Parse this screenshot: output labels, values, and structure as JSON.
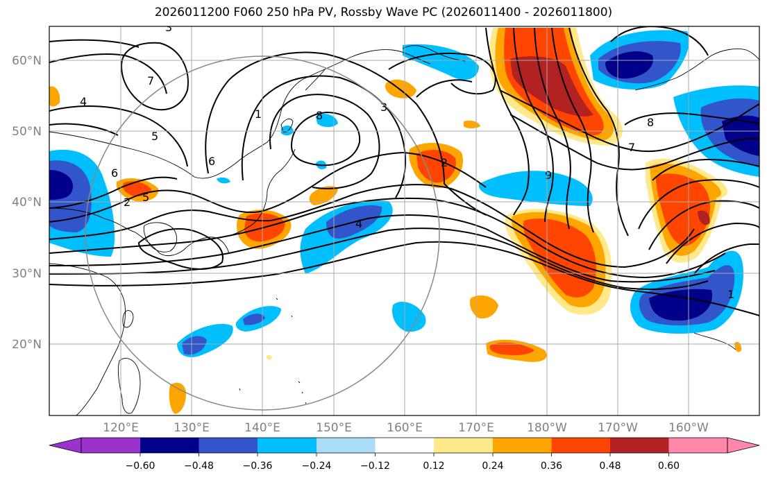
{
  "title": "2026011200 F060 250 hPa PV, Rossby Wave PC (2026011400 - 2026011800)",
  "map": {
    "lat_ticks": [
      "60°N",
      "50°N",
      "40°N",
      "30°N",
      "20°N"
    ],
    "lon_ticks": [
      "120°E",
      "130°E",
      "140°E",
      "150°E",
      "160°E",
      "170°E",
      "180°W",
      "170°W",
      "160°W"
    ],
    "contour_labels": [
      "3",
      "4",
      "5",
      "6",
      "7",
      "8",
      "1",
      "2",
      "4",
      "5",
      "6",
      "7",
      "8",
      "1",
      "2",
      "3",
      "9"
    ],
    "circle_color": "#888888",
    "grid_color": "#aaaaaa"
  },
  "colorbar": {
    "tick_labels": [
      "−0.60",
      "−0.48",
      "−0.36",
      "−0.24",
      "−0.12",
      "0.12",
      "0.24",
      "0.36",
      "0.48",
      "0.60"
    ],
    "colors": [
      "#9933cc",
      "#00008b",
      "#3355cc",
      "#00bfff",
      "#aadcf8",
      "#ffffff",
      "#ffe98a",
      "#ffa500",
      "#ff4500",
      "#b22222",
      "#ff88aa"
    ]
  }
}
